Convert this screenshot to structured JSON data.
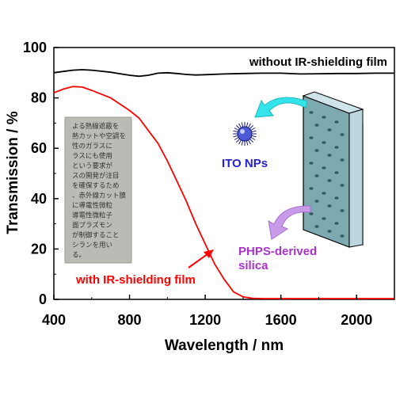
{
  "chart_data": {
    "type": "line",
    "xlabel": "Wavelength / nm",
    "ylabel": "Transmission / %",
    "xlim": [
      400,
      2200
    ],
    "ylim": [
      0,
      100
    ],
    "xticks": [
      "400",
      "800",
      "1200",
      "1600",
      "2000"
    ],
    "yticks": [
      "0",
      "20",
      "40",
      "60",
      "80",
      "100"
    ],
    "grid": false,
    "series": [
      {
        "name": "without IR-shielding film",
        "color": "#000000",
        "x": [
          400,
          450,
          500,
          550,
          600,
          650,
          700,
          750,
          800,
          850,
          900,
          950,
          1000,
          1050,
          1100,
          1150,
          1200,
          1300,
          1400,
          1500,
          1600,
          1700,
          1800,
          1900,
          2000,
          2100,
          2200
        ],
        "y": [
          90,
          90.5,
          91,
          91.2,
          91,
          90.6,
          90.2,
          89.6,
          89,
          88.6,
          89,
          89.8,
          90,
          89.7,
          89.3,
          89.1,
          89.2,
          89.5,
          89.7,
          89.8,
          89.8,
          89.5,
          89.6,
          89.7,
          89.7,
          89.8,
          89.8
        ]
      },
      {
        "name": "with IR-shielding film",
        "color": "#ff0000",
        "x": [
          400,
          450,
          500,
          550,
          600,
          650,
          700,
          750,
          800,
          850,
          900,
          950,
          1000,
          1050,
          1100,
          1150,
          1200,
          1250,
          1300,
          1350,
          1400,
          1450,
          1500,
          1600,
          1700,
          1800,
          1900,
          2000,
          2100,
          2200
        ],
        "y": [
          82,
          83.5,
          84.5,
          84.3,
          83,
          81.5,
          80,
          77.5,
          75,
          72,
          67,
          62,
          55,
          47,
          39,
          30,
          22,
          14,
          8,
          3,
          1,
          0.4,
          0.3,
          0.3,
          0.3,
          0.3,
          0.3,
          0.3,
          0.3,
          0.3
        ]
      }
    ],
    "annotations": [
      {
        "text": "without IR-shielding film",
        "color": "#000000"
      },
      {
        "text": "with IR-shielding film",
        "color": "#ff0000"
      },
      {
        "text": "ITO NPs",
        "color": "#2222cc"
      },
      {
        "text": "PHPS-derived",
        "color": "#aa33cc"
      },
      {
        "text": "silica",
        "color": "#aa33cc"
      }
    ],
    "photo_text_lines": [
      "よる熱線遮蔽を",
      "熱カットや空調を",
      "性のガラスに",
      "ラスにも使用",
      "という要求が",
      "スの開発が注目",
      "を確保するため",
      "、赤外線カット膜",
      "に導電性微粒",
      "導電性微粒子",
      "面プラズモン",
      "が制御すること",
      "シランを用い",
      "る。"
    ]
  }
}
